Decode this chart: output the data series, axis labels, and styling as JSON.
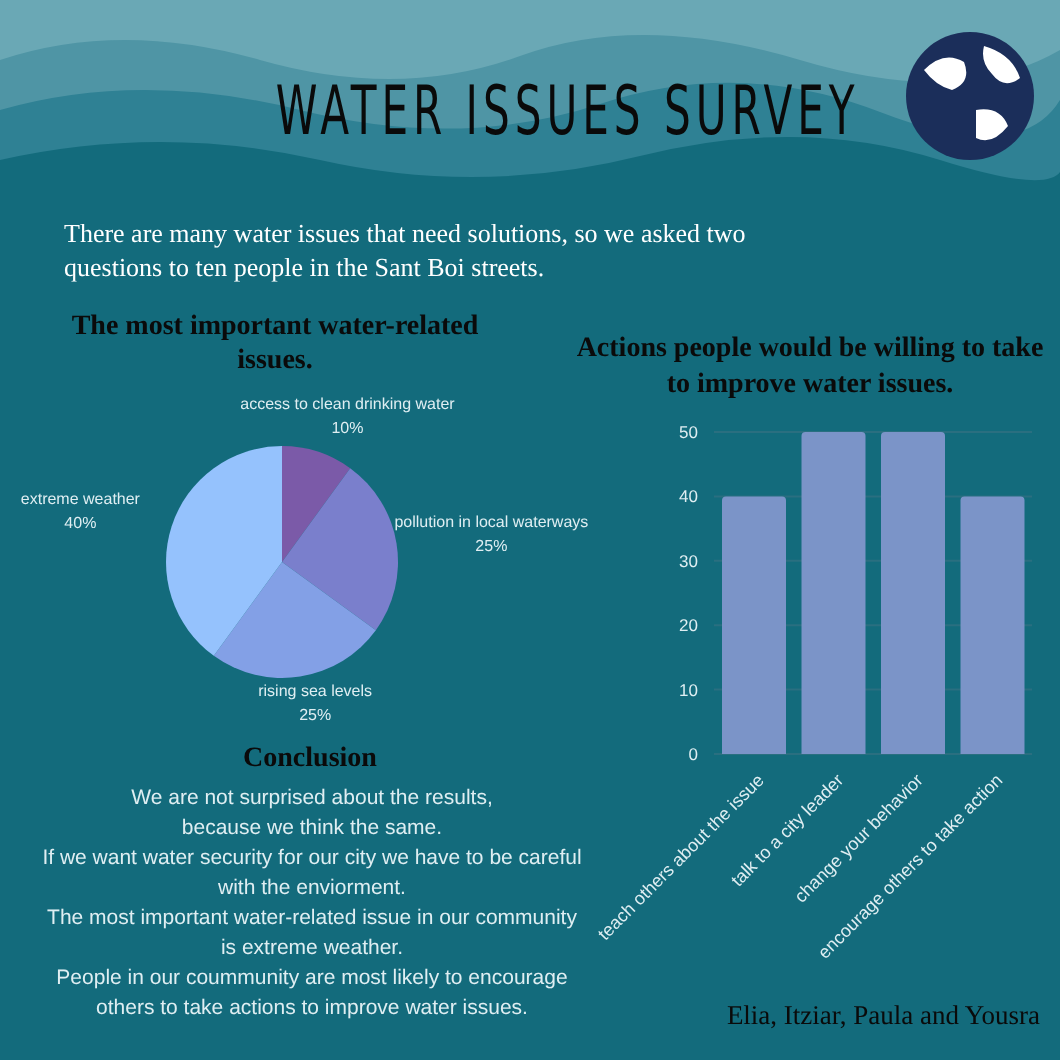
{
  "chart_data": [
    {
      "type": "other",
      "title": "WATER ISSUES SURVEY",
      "annotations": [
        "There are many water issues that need solutions, so we asked two questions to ten people in the Sant Boi streets."
      ]
    },
    {
      "type": "pie",
      "title": "The most important water-related issues.",
      "categories": [
        "access to clean drinking water",
        "pollution in local waterways",
        "rising sea levels",
        "extreme weather"
      ],
      "values": [
        10,
        25,
        25,
        40
      ],
      "value_labels": [
        "10%",
        "25%",
        "25%",
        "40%"
      ],
      "colors": [
        "#7b5aa8",
        "#7a7fcc",
        "#83a0e6",
        "#95c2fd"
      ]
    },
    {
      "type": "bar",
      "title": "Actions people would be willing to take to improve water issues.",
      "categories": [
        "teach others about  the issue",
        "talk to a city leader",
        "change your behavior",
        "encourage others to take action"
      ],
      "values": [
        40,
        50,
        50,
        40
      ],
      "color": "#7b94c8",
      "ylim": [
        0,
        50
      ],
      "yticks": [
        0,
        10,
        20,
        30,
        40,
        50
      ],
      "grid": "y"
    },
    {
      "type": "other",
      "title": "Conclusion",
      "annotations": [
        "We are not surprised about the results,\nbecause we think the same.\nIf we want water security for our city we have to be careful with the enviorment.\nThe most important water-related issue in our community is extreme weather.\nPeople in our coummunity are most likely to  encourage others to take actions to improve water issues.",
        "Elia, Itziar, Paula and Yousra"
      ]
    }
  ]
}
